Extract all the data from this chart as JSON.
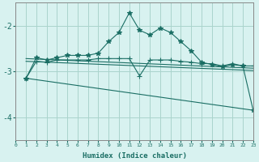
{
  "xlabel": "Humidex (Indice chaleur)",
  "background_color": "#d8f2f0",
  "grid_color": "#aad4cc",
  "line_color": "#1a6e64",
  "xlim": [
    0,
    23
  ],
  "ylim": [
    -4.5,
    -1.5
  ],
  "yticks": [
    -4,
    -3,
    -2
  ],
  "xticks": [
    0,
    1,
    2,
    3,
    4,
    5,
    6,
    7,
    8,
    9,
    10,
    11,
    12,
    13,
    14,
    15,
    16,
    17,
    18,
    19,
    20,
    21,
    22,
    23
  ],
  "series": [
    {
      "x": [
        1,
        2,
        3,
        4,
        5,
        6,
        7,
        8,
        9,
        10,
        11,
        12,
        13,
        14,
        15,
        16,
        17,
        18,
        19,
        20,
        21,
        22,
        23
      ],
      "y": [
        -3.15,
        -2.7,
        -2.75,
        -2.7,
        -2.65,
        -2.65,
        -2.65,
        -2.6,
        -2.35,
        -2.15,
        -1.72,
        -2.1,
        -2.2,
        -2.05,
        -2.15,
        -2.35,
        -2.55,
        -2.8,
        -2.85,
        -2.9,
        -2.85,
        -2.88,
        -3.85
      ],
      "marker": "*",
      "markersize": 4
    },
    {
      "x": [
        1,
        2,
        3,
        4,
        5,
        6,
        7,
        8,
        9,
        10,
        11,
        12,
        13,
        14,
        15,
        16,
        17,
        18,
        19,
        20,
        21,
        22,
        23
      ],
      "y": [
        -3.15,
        -2.78,
        -2.8,
        -2.75,
        -2.75,
        -2.75,
        -2.75,
        -2.72,
        -2.72,
        -2.72,
        -2.72,
        -3.1,
        -2.75,
        -2.75,
        -2.75,
        -2.78,
        -2.8,
        -2.83,
        -2.83,
        -2.88,
        -2.83,
        -2.88,
        -2.88
      ],
      "marker": "+",
      "markersize": 4
    },
    {
      "x": [
        1,
        23
      ],
      "y": [
        -2.72,
        -2.93
      ],
      "marker": null,
      "markersize": 0
    },
    {
      "x": [
        1,
        23
      ],
      "y": [
        -2.78,
        -2.98
      ],
      "marker": null,
      "markersize": 0
    },
    {
      "x": [
        1,
        23
      ],
      "y": [
        -3.15,
        -3.85
      ],
      "marker": null,
      "markersize": 0
    }
  ]
}
